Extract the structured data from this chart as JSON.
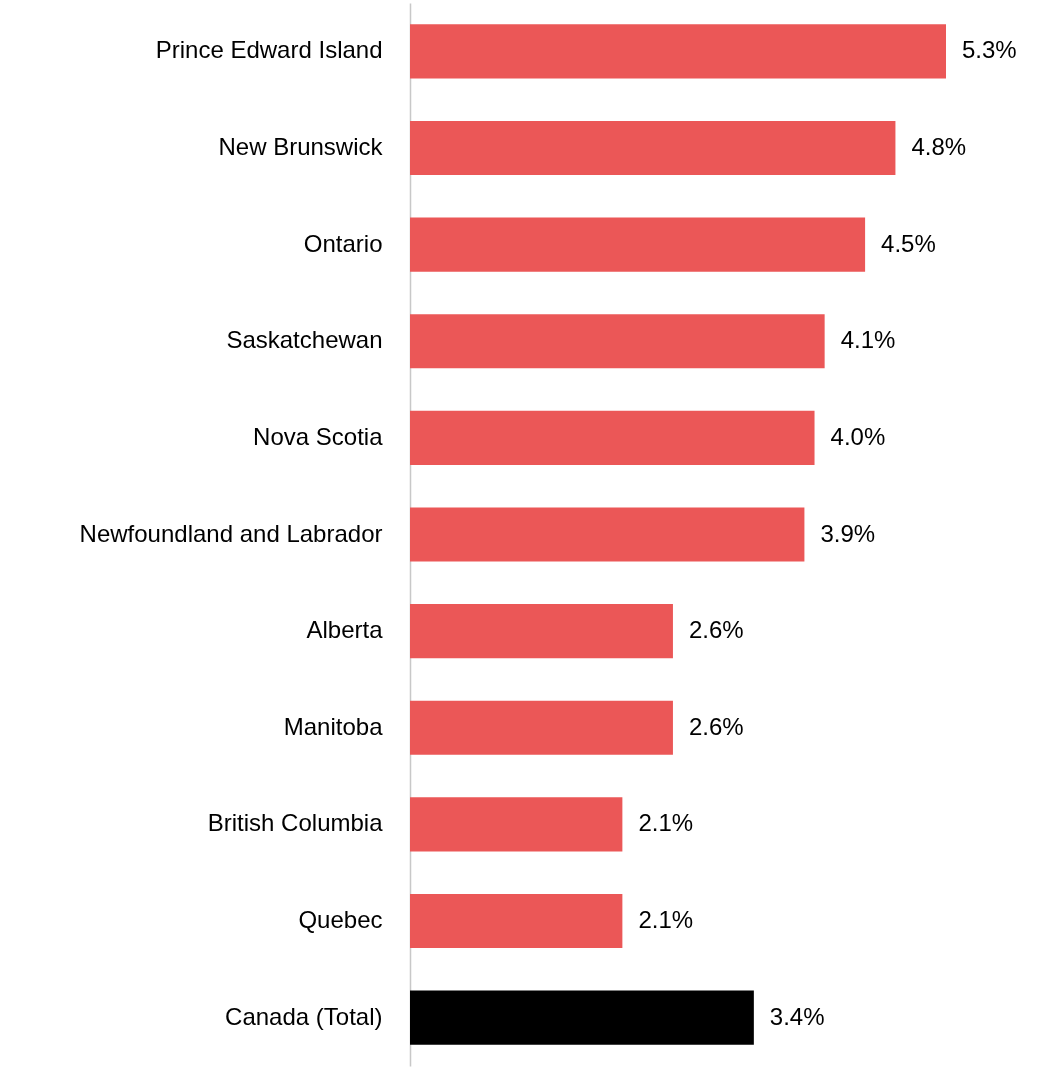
{
  "chart_data": {
    "type": "bar",
    "orientation": "horizontal",
    "categories": [
      "Prince Edward Island",
      "New Brunswick",
      "Ontario",
      "Saskatchewan",
      "Nova Scotia",
      "Newfoundland and Labrador",
      "Alberta",
      "Manitoba",
      "British Columbia",
      "Quebec",
      "Canada (Total)"
    ],
    "values": [
      5.3,
      4.8,
      4.5,
      4.1,
      4.0,
      3.9,
      2.6,
      2.6,
      2.1,
      2.1,
      3.4
    ],
    "value_labels": [
      "5.3%",
      "4.8%",
      "4.5%",
      "4.1%",
      "4.0%",
      "3.9%",
      "2.6%",
      "2.6%",
      "2.1%",
      "2.1%",
      "3.4%"
    ],
    "colors": [
      "#eb5757",
      "#eb5757",
      "#eb5757",
      "#eb5757",
      "#eb5757",
      "#eb5757",
      "#eb5757",
      "#eb5757",
      "#eb5757",
      "#eb5757",
      "#000000"
    ],
    "grid": false
  }
}
